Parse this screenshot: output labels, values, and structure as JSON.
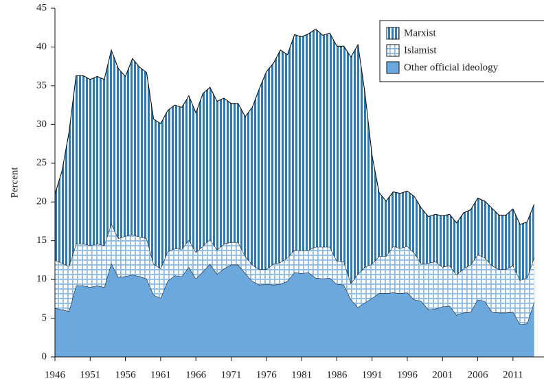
{
  "chart_data": {
    "type": "stacked_area",
    "ylabel": "Percent",
    "x": [
      1946,
      1947,
      1948,
      1949,
      1950,
      1951,
      1952,
      1953,
      1954,
      1955,
      1956,
      1957,
      1958,
      1959,
      1960,
      1961,
      1962,
      1963,
      1964,
      1965,
      1966,
      1967,
      1968,
      1969,
      1970,
      1971,
      1972,
      1973,
      1974,
      1975,
      1976,
      1977,
      1978,
      1979,
      1980,
      1981,
      1982,
      1983,
      1984,
      1985,
      1986,
      1987,
      1988,
      1989,
      1990,
      1991,
      1992,
      1993,
      1994,
      1995,
      1996,
      1997,
      1998,
      1999,
      2000,
      2001,
      2002,
      2003,
      2004,
      2005,
      2006,
      2007,
      2008,
      2009,
      2010,
      2011,
      2012,
      2013,
      2014
    ],
    "series": [
      {
        "name": "Other official ideology",
        "color": "#6ba8dd",
        "pattern": "solid",
        "values": [
          6.3,
          6.1,
          5.9,
          9.2,
          9.2,
          9,
          9.2,
          9,
          12.1,
          10.3,
          10.4,
          10.6,
          10.4,
          10.1,
          8,
          7.6,
          9.8,
          10.5,
          10.4,
          11.6,
          10.1,
          11,
          12,
          10.7,
          11.4,
          11.9,
          11.9,
          10.8,
          9.8,
          9.3,
          9.4,
          9.3,
          9.4,
          9.8,
          10.9,
          10.8,
          10.9,
          10.2,
          10.1,
          10.2,
          9.4,
          9.3,
          7.4,
          6.4,
          7,
          7.6,
          8.2,
          8.2,
          8.3,
          8.2,
          8.3,
          7.4,
          7.2,
          6.1,
          6.2,
          6.5,
          6.6,
          5.4,
          5.7,
          5.8,
          7.4,
          7.2,
          5.8,
          5.7,
          5.7,
          5.8,
          4.2,
          4.3,
          7.1
        ]
      },
      {
        "name": "Islamist",
        "color": "#8bbbe6",
        "pattern": "grid",
        "values": [
          6.2,
          6.0,
          5.8,
          5.4,
          5.4,
          5.4,
          5.4,
          5.4,
          5.1,
          5.0,
          5.2,
          5.2,
          5.1,
          5.2,
          4.0,
          3.8,
          3.8,
          3.5,
          3.5,
          3.5,
          3.4,
          3.3,
          3.2,
          3.1,
          3.2,
          2.9,
          2.9,
          2.2,
          2.1,
          2.0,
          1.9,
          2.7,
          2.8,
          3.0,
          2.9,
          2.9,
          2.9,
          4.0,
          4.1,
          4.0,
          3.0,
          3.0,
          2.1,
          4.3,
          4.6,
          4.4,
          4.8,
          4.8,
          6.0,
          5.8,
          6.0,
          6.0,
          4.8,
          6.0,
          6.1,
          5.1,
          5.2,
          5.2,
          5.7,
          6.1,
          5.8,
          5.6,
          6.0,
          5.6,
          5.6,
          6.0,
          5.7,
          5.9,
          5.7
        ]
      },
      {
        "name": "Marxist",
        "color": "#2b7bb6",
        "pattern": "vertical",
        "values": [
          8.5,
          11.9,
          17.3,
          21.7,
          21.7,
          21.4,
          21.6,
          21.4,
          22.4,
          21.9,
          20.6,
          22.7,
          21.9,
          21.4,
          18.7,
          18.7,
          18.2,
          18.5,
          18.3,
          18.6,
          18.0,
          19.7,
          19.6,
          19.2,
          18.8,
          17.9,
          17.9,
          18.0,
          20.3,
          23.3,
          25.5,
          25.9,
          27.4,
          26.2,
          27.8,
          27.6,
          27.9,
          28.1,
          27.3,
          27.6,
          27.7,
          27.8,
          29.2,
          29.6,
          22.4,
          14.0,
          8.2,
          7.1,
          7.0,
          7.1,
          7.1,
          7.3,
          7.2,
          6.0,
          6.1,
          6.6,
          6.6,
          6.7,
          7.2,
          7.1,
          7.3,
          7.3,
          7.4,
          7.0,
          7.0,
          7.3,
          7.2,
          7.2,
          6.9
        ]
      }
    ],
    "xlim": [
      1946,
      2015.4
    ],
    "xticks": [
      1946,
      1951,
      1956,
      1961,
      1966,
      1971,
      1976,
      1981,
      1986,
      1991,
      1996,
      2001,
      2006,
      2011
    ],
    "ylim": [
      0,
      45
    ],
    "yticks": [
      0,
      5,
      10,
      15,
      20,
      25,
      30,
      35,
      40,
      45
    ],
    "legend": "upper right"
  }
}
